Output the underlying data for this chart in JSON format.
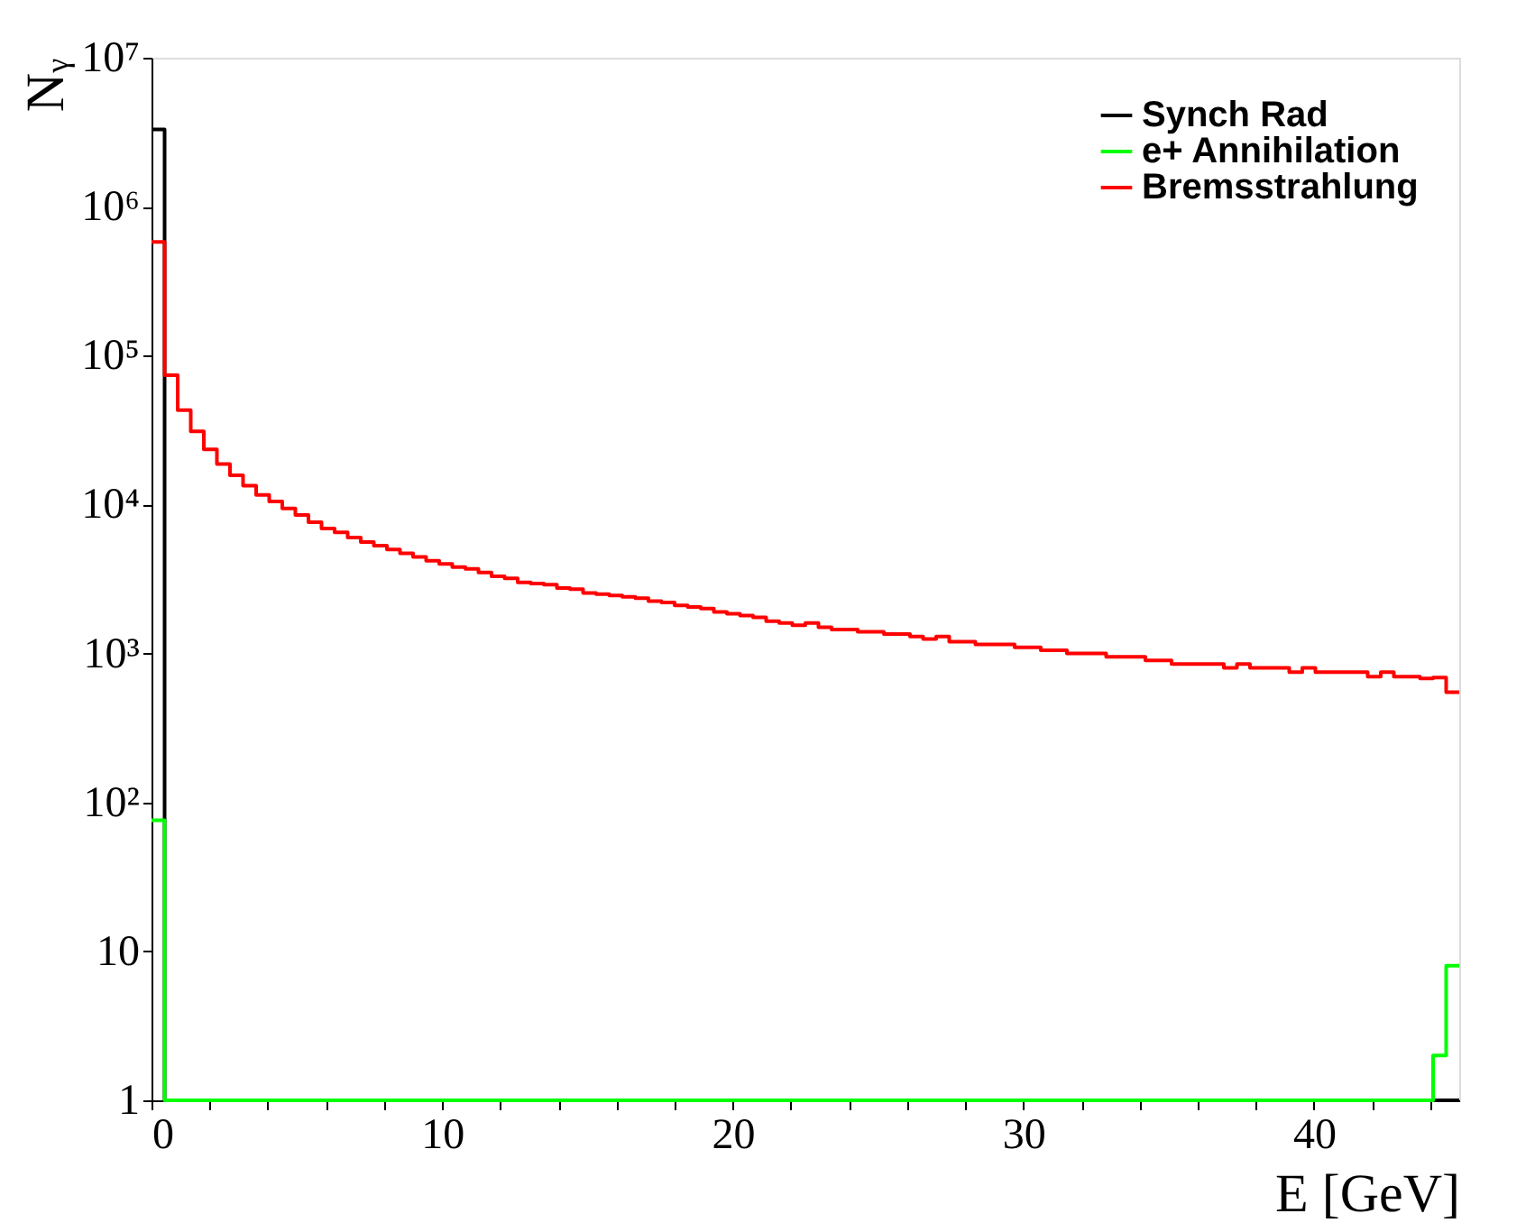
{
  "chart_data": {
    "type": "histogram",
    "xlabel": "E [GeV]",
    "ylabel": "Nᵧ",
    "bins": [
      0,
      0.45,
      0.9,
      1.35,
      1.8,
      2.25,
      2.7,
      3.15,
      3.6,
      4.05,
      4.5,
      4.95,
      5.4,
      5.85,
      6.3,
      6.75,
      7.2,
      7.65,
      8.1,
      8.55,
      9,
      9.45,
      9.9,
      10.35,
      10.8,
      11.25,
      11.7,
      12.15,
      12.6,
      13.05,
      13.5,
      13.95,
      14.4,
      14.85,
      15.3,
      15.75,
      16.2,
      16.65,
      17.1,
      17.55,
      18,
      18.45,
      18.9,
      19.35,
      19.8,
      20.25,
      20.7,
      21.15,
      21.6,
      22.05,
      22.5,
      22.95,
      23.4,
      23.85,
      24.3,
      24.75,
      25.2,
      25.65,
      26.1,
      26.55,
      27,
      27.45,
      27.9,
      28.35,
      28.8,
      29.25,
      29.7,
      30.15,
      30.6,
      31.05,
      31.5,
      31.95,
      32.4,
      32.85,
      33.3,
      33.75,
      34.2,
      34.65,
      35.1,
      35.55,
      36,
      36.45,
      36.9,
      37.35,
      37.8,
      38.25,
      38.7,
      39.15,
      39.6,
      40.05,
      40.5,
      40.95,
      41.4,
      41.85,
      42.3,
      42.75,
      43.2,
      43.65,
      44.1,
      44.55,
      45
    ],
    "series": [
      {
        "name": "Synch Rad",
        "color": "#000000",
        "values": [
          3300000,
          1,
          1,
          1,
          1,
          1,
          1,
          1,
          1,
          1,
          1,
          1,
          1,
          1,
          1,
          1,
          1,
          1,
          1,
          1,
          1,
          1,
          1,
          1,
          1,
          1,
          1,
          1,
          1,
          1,
          1,
          1,
          1,
          1,
          1,
          1,
          1,
          1,
          1,
          1,
          1,
          1,
          1,
          1,
          1,
          1,
          1,
          1,
          1,
          1,
          1,
          1,
          1,
          1,
          1,
          1,
          1,
          1,
          1,
          1,
          1,
          1,
          1,
          1,
          1,
          1,
          1,
          1,
          1,
          1,
          1,
          1,
          1,
          1,
          1,
          1,
          1,
          1,
          1,
          1,
          1,
          1,
          1,
          1,
          1,
          1,
          1,
          1,
          1,
          1,
          1,
          1,
          1,
          1,
          1,
          1,
          1,
          1,
          1,
          1
        ]
      },
      {
        "name": "e+ Annihilation",
        "color": "#00ff00",
        "values": [
          76,
          1,
          1,
          1,
          1,
          1,
          1,
          1,
          1,
          1,
          1,
          1,
          1,
          1,
          1,
          1,
          1,
          1,
          1,
          1,
          1,
          1,
          1,
          1,
          1,
          1,
          1,
          1,
          1,
          1,
          1,
          1,
          1,
          1,
          1,
          1,
          1,
          1,
          1,
          1,
          1,
          1,
          1,
          1,
          1,
          1,
          1,
          1,
          1,
          1,
          1,
          1,
          1,
          1,
          1,
          1,
          1,
          1,
          1,
          1,
          1,
          1,
          1,
          1,
          1,
          1,
          1,
          1,
          1,
          1,
          1,
          1,
          1,
          1,
          1,
          1,
          1,
          1,
          1,
          1,
          1,
          1,
          1,
          1,
          1,
          1,
          1,
          1,
          1,
          1,
          1,
          1,
          1,
          1,
          1,
          1,
          1,
          1,
          2,
          8
        ]
      },
      {
        "name": "Bremsstrahlung",
        "color": "#ff0000",
        "values": [
          580000,
          74000,
          43000,
          31000,
          23500,
          18700,
          15700,
          13400,
          11600,
          10500,
          9400,
          8500,
          7600,
          6900,
          6500,
          6000,
          5600,
          5300,
          5000,
          4700,
          4450,
          4200,
          4000,
          3800,
          3700,
          3500,
          3300,
          3200,
          3000,
          2950,
          2900,
          2750,
          2700,
          2550,
          2500,
          2450,
          2400,
          2350,
          2250,
          2200,
          2100,
          2050,
          2000,
          1900,
          1850,
          1800,
          1750,
          1650,
          1600,
          1550,
          1600,
          1500,
          1450,
          1450,
          1400,
          1400,
          1350,
          1350,
          1300,
          1250,
          1300,
          1200,
          1200,
          1150,
          1150,
          1150,
          1100,
          1100,
          1050,
          1050,
          1000,
          1000,
          1000,
          950,
          950,
          950,
          900,
          900,
          850,
          850,
          850,
          850,
          800,
          850,
          800,
          800,
          800,
          750,
          800,
          750,
          750,
          750,
          750,
          700,
          750,
          700,
          700,
          680,
          690,
          550
        ]
      }
    ],
    "xlim": [
      0,
      45
    ],
    "xticks": [
      0,
      {
        "value": 2,
        "label": null
      },
      {
        "value": 4,
        "label": null
      },
      {
        "value": 6,
        "label": null
      },
      {
        "value": 8,
        "label": null
      },
      10,
      {
        "value": 12,
        "label": null
      },
      {
        "value": 14,
        "label": null
      },
      {
        "value": 16,
        "label": null
      },
      {
        "value": 18,
        "label": null
      },
      20,
      {
        "value": 22,
        "label": null
      },
      {
        "value": 24,
        "label": null
      },
      {
        "value": 26,
        "label": null
      },
      {
        "value": 28,
        "label": null
      },
      30,
      {
        "value": 32,
        "label": null
      },
      {
        "value": 34,
        "label": null
      },
      {
        "value": 36,
        "label": null
      },
      {
        "value": 38,
        "label": null
      },
      40,
      {
        "value": 42,
        "label": null
      },
      {
        "value": 44,
        "label": null
      }
    ],
    "ylim": [
      1,
      10000000
    ],
    "yticks": [
      1,
      10,
      {
        "value": 100,
        "label": "10²"
      },
      {
        "value": 1000,
        "label": "10³"
      },
      {
        "value": 10000,
        "label": "10⁴"
      },
      {
        "value": 100000,
        "label": "10⁵"
      },
      {
        "value": 1000000,
        "label": "10⁶"
      },
      {
        "value": 10000000,
        "label": "10⁷"
      }
    ],
    "log": "y",
    "grid": false,
    "legend": "top right"
  }
}
